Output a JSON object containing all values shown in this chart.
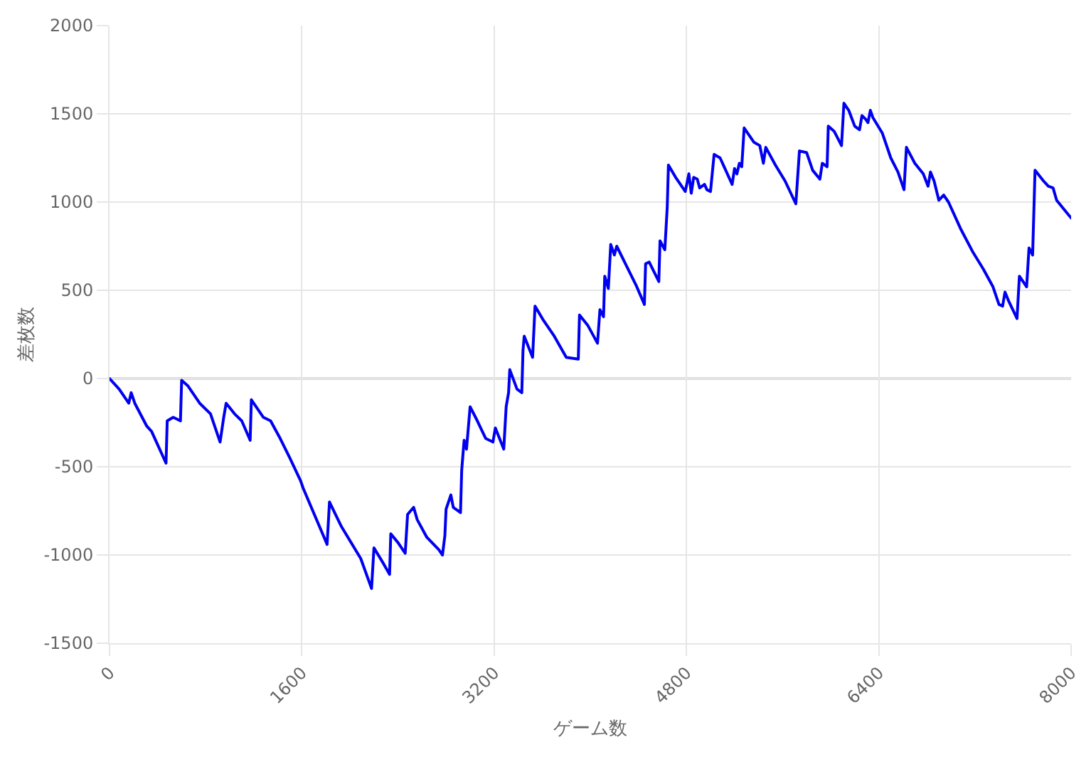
{
  "chart_data": {
    "type": "line",
    "xlabel": "ゲーム数",
    "ylabel": "差枚数",
    "color": "#0000f0",
    "marker": "none",
    "line_style": "solid",
    "grid": true,
    "xlim": [
      0,
      8000
    ],
    "xticks": [
      0,
      1600,
      3200,
      4800,
      6400,
      8000
    ],
    "ylim": [
      -1500,
      2000
    ],
    "yticks": [
      -1500,
      -1000,
      -500,
      0,
      500,
      1000,
      1500,
      2000
    ],
    "ref_lines": [
      {
        "axis": "y",
        "value": 0,
        "color": "#b4b4b4"
      }
    ],
    "x": [
      0,
      80,
      160,
      180,
      210,
      310,
      350,
      470,
      480,
      530,
      590,
      600,
      650,
      750,
      840,
      920,
      950,
      970,
      1040,
      1100,
      1170,
      1180,
      1280,
      1340,
      1420,
      1500,
      1590,
      1610,
      1810,
      1830,
      1930,
      2090,
      2180,
      2200,
      2280,
      2330,
      2340,
      2400,
      2460,
      2480,
      2530,
      2560,
      2640,
      2740,
      2770,
      2790,
      2800,
      2840,
      2860,
      2920,
      2930,
      2950,
      2970,
      3000,
      3060,
      3130,
      3190,
      3210,
      3280,
      3300,
      3320,
      3330,
      3390,
      3430,
      3440,
      3450,
      3520,
      3540,
      3610,
      3700,
      3800,
      3900,
      3910,
      3980,
      4060,
      4080,
      4110,
      4120,
      4150,
      4170,
      4200,
      4220,
      4300,
      4380,
      4450,
      4460,
      4490,
      4570,
      4580,
      4620,
      4640,
      4650,
      4710,
      4790,
      4820,
      4840,
      4860,
      4890,
      4910,
      4950,
      4970,
      5000,
      5030,
      5080,
      5180,
      5200,
      5220,
      5240,
      5260,
      5280,
      5360,
      5410,
      5440,
      5460,
      5540,
      5620,
      5710,
      5740,
      5800,
      5850,
      5910,
      5930,
      5970,
      5980,
      6030,
      6090,
      6110,
      6150,
      6200,
      6240,
      6260,
      6290,
      6310,
      6330,
      6350,
      6430,
      6500,
      6560,
      6610,
      6630,
      6700,
      6770,
      6810,
      6830,
      6860,
      6900,
      6940,
      6980,
      7080,
      7180,
      7270,
      7350,
      7400,
      7430,
      7450,
      7480,
      7550,
      7570,
      7630,
      7650,
      7680,
      7700,
      7770,
      7810,
      7850,
      7880,
      7940,
      8000
    ],
    "values": [
      0,
      -60,
      -140,
      -80,
      -140,
      -270,
      -300,
      -480,
      -240,
      -220,
      -240,
      -10,
      -40,
      -140,
      -200,
      -360,
      -220,
      -140,
      -200,
      -240,
      -350,
      -120,
      -220,
      -240,
      -340,
      -450,
      -580,
      -620,
      -940,
      -700,
      -840,
      -1020,
      -1190,
      -960,
      -1050,
      -1110,
      -880,
      -930,
      -990,
      -770,
      -730,
      -800,
      -900,
      -970,
      -1000,
      -890,
      -740,
      -660,
      -730,
      -760,
      -520,
      -350,
      -400,
      -160,
      -240,
      -340,
      -360,
      -280,
      -400,
      -160,
      -80,
      50,
      -60,
      -80,
      160,
      240,
      120,
      410,
      330,
      240,
      120,
      110,
      360,
      300,
      200,
      390,
      350,
      580,
      510,
      760,
      700,
      750,
      640,
      530,
      420,
      650,
      660,
      550,
      780,
      730,
      970,
      1210,
      1140,
      1060,
      1160,
      1050,
      1140,
      1130,
      1080,
      1100,
      1070,
      1060,
      1270,
      1250,
      1100,
      1190,
      1160,
      1220,
      1200,
      1420,
      1340,
      1320,
      1220,
      1310,
      1210,
      1120,
      990,
      1290,
      1280,
      1180,
      1130,
      1220,
      1200,
      1430,
      1400,
      1320,
      1560,
      1520,
      1430,
      1410,
      1490,
      1470,
      1450,
      1520,
      1480,
      1390,
      1250,
      1170,
      1070,
      1310,
      1220,
      1160,
      1090,
      1170,
      1120,
      1010,
      1040,
      1000,
      850,
      720,
      620,
      520,
      420,
      410,
      490,
      440,
      340,
      580,
      520,
      740,
      700,
      1180,
      1120,
      1090,
      1080,
      1010,
      960,
      910
    ]
  }
}
